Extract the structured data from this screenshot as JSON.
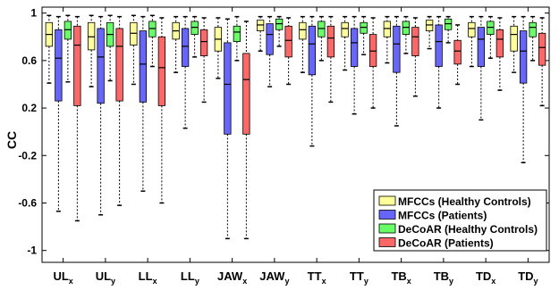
{
  "chart_data": {
    "type": "box",
    "ylabel": "CC",
    "ylim": [
      -1.1,
      1.05
    ],
    "yticks": [
      1,
      0.6,
      0.2,
      -0.2,
      -0.6,
      -1
    ],
    "ytick_labels": [
      "1",
      "0.6",
      "0.2",
      "-0.2",
      "-0.6",
      "-1"
    ],
    "categories": [
      {
        "base": "UL",
        "sub": "x"
      },
      {
        "base": "UL",
        "sub": "y"
      },
      {
        "base": "LL",
        "sub": "x"
      },
      {
        "base": "LL",
        "sub": "y"
      },
      {
        "base": "JAW",
        "sub": "x"
      },
      {
        "base": "JAW",
        "sub": "y"
      },
      {
        "base": "TT",
        "sub": "x"
      },
      {
        "base": "TT",
        "sub": "y"
      },
      {
        "base": "TB",
        "sub": "x"
      },
      {
        "base": "TB",
        "sub": "y"
      },
      {
        "base": "TD",
        "sub": "x"
      },
      {
        "base": "TD",
        "sub": "y"
      }
    ],
    "legend_position": "bottom-right",
    "series": [
      {
        "name": "MFCCs (Healthy Controls)",
        "color": "#ffff99",
        "boxes": [
          {
            "min": 0.41,
            "q1": 0.72,
            "median": 0.82,
            "q3": 0.92,
            "max": 0.98
          },
          {
            "min": 0.38,
            "q1": 0.69,
            "median": 0.8,
            "q3": 0.92,
            "max": 0.98
          },
          {
            "min": 0.4,
            "q1": 0.73,
            "median": 0.83,
            "q3": 0.92,
            "max": 0.98
          },
          {
            "min": 0.5,
            "q1": 0.78,
            "median": 0.85,
            "q3": 0.92,
            "max": 0.97
          },
          {
            "min": 0.45,
            "q1": 0.68,
            "median": 0.78,
            "q3": 0.88,
            "max": 0.96
          },
          {
            "min": 0.68,
            "q1": 0.85,
            "median": 0.9,
            "q3": 0.94,
            "max": 0.97
          },
          {
            "min": 0.5,
            "q1": 0.78,
            "median": 0.86,
            "q3": 0.92,
            "max": 0.97
          },
          {
            "min": 0.52,
            "q1": 0.8,
            "median": 0.87,
            "q3": 0.92,
            "max": 0.97
          },
          {
            "min": 0.58,
            "q1": 0.8,
            "median": 0.87,
            "q3": 0.93,
            "max": 0.97
          },
          {
            "min": 0.7,
            "q1": 0.85,
            "median": 0.9,
            "q3": 0.94,
            "max": 0.97
          },
          {
            "min": 0.55,
            "q1": 0.8,
            "median": 0.87,
            "q3": 0.92,
            "max": 0.97
          },
          {
            "min": 0.5,
            "q1": 0.68,
            "median": 0.82,
            "q3": 0.89,
            "max": 0.97
          }
        ]
      },
      {
        "name": "MFCCs (Patients)",
        "color": "#6666ff",
        "boxes": [
          {
            "min": -0.67,
            "q1": 0.26,
            "median": 0.62,
            "q3": 0.86,
            "max": 0.97
          },
          {
            "min": -0.7,
            "q1": 0.24,
            "median": 0.63,
            "q3": 0.87,
            "max": 0.97
          },
          {
            "min": -0.5,
            "q1": 0.25,
            "median": 0.57,
            "q3": 0.85,
            "max": 0.97
          },
          {
            "min": 0.03,
            "q1": 0.55,
            "median": 0.72,
            "q3": 0.87,
            "max": 0.97
          },
          {
            "min": -0.9,
            "q1": -0.02,
            "median": 0.4,
            "q3": 0.75,
            "max": 0.95
          },
          {
            "min": 0.38,
            "q1": 0.65,
            "median": 0.82,
            "q3": 0.91,
            "max": 0.97
          },
          {
            "min": -0.12,
            "q1": 0.48,
            "median": 0.74,
            "q3": 0.89,
            "max": 0.97
          },
          {
            "min": 0.15,
            "q1": 0.55,
            "median": 0.75,
            "q3": 0.87,
            "max": 0.97
          },
          {
            "min": 0.05,
            "q1": 0.5,
            "median": 0.74,
            "q3": 0.89,
            "max": 0.97
          },
          {
            "min": 0.2,
            "q1": 0.55,
            "median": 0.76,
            "q3": 0.9,
            "max": 0.97
          },
          {
            "min": 0.1,
            "q1": 0.55,
            "median": 0.78,
            "q3": 0.88,
            "max": 0.97
          },
          {
            "min": -0.26,
            "q1": 0.41,
            "median": 0.68,
            "q3": 0.85,
            "max": 0.97
          }
        ]
      },
      {
        "name": "DeCoAR (Healthy Controls)",
        "color": "#66ff66",
        "boxes": [
          {
            "min": 0.42,
            "q1": 0.78,
            "median": 0.86,
            "q3": 0.93,
            "max": 0.98
          },
          {
            "min": 0.43,
            "q1": 0.72,
            "median": 0.82,
            "q3": 0.92,
            "max": 0.98
          },
          {
            "min": 0.55,
            "q1": 0.8,
            "median": 0.87,
            "q3": 0.93,
            "max": 0.98
          },
          {
            "min": 0.63,
            "q1": 0.82,
            "median": 0.88,
            "q3": 0.93,
            "max": 0.97
          },
          {
            "min": 0.6,
            "q1": 0.76,
            "median": 0.84,
            "q3": 0.89,
            "max": 0.97
          },
          {
            "min": 0.72,
            "q1": 0.86,
            "median": 0.91,
            "q3": 0.95,
            "max": 0.97
          },
          {
            "min": 0.6,
            "q1": 0.8,
            "median": 0.87,
            "q3": 0.93,
            "max": 0.97
          },
          {
            "min": 0.65,
            "q1": 0.83,
            "median": 0.88,
            "q3": 0.92,
            "max": 0.97
          },
          {
            "min": 0.66,
            "q1": 0.82,
            "median": 0.88,
            "q3": 0.93,
            "max": 0.97
          },
          {
            "min": 0.75,
            "q1": 0.86,
            "median": 0.91,
            "q3": 0.95,
            "max": 0.97
          },
          {
            "min": 0.62,
            "q1": 0.82,
            "median": 0.88,
            "q3": 0.93,
            "max": 0.97
          },
          {
            "min": 0.6,
            "q1": 0.8,
            "median": 0.88,
            "q3": 0.92,
            "max": 0.97
          }
        ]
      },
      {
        "name": "DeCoAR (Patients)",
        "color": "#ff6666",
        "boxes": [
          {
            "min": -0.75,
            "q1": 0.22,
            "median": 0.73,
            "q3": 0.89,
            "max": 0.97
          },
          {
            "min": -0.62,
            "q1": 0.26,
            "median": 0.72,
            "q3": 0.87,
            "max": 0.97
          },
          {
            "min": -0.6,
            "q1": 0.22,
            "median": 0.54,
            "q3": 0.8,
            "max": 0.96
          },
          {
            "min": 0.25,
            "q1": 0.64,
            "median": 0.76,
            "q3": 0.86,
            "max": 0.96
          },
          {
            "min": -0.9,
            "q1": -0.02,
            "median": 0.44,
            "q3": 0.66,
            "max": 0.93
          },
          {
            "min": 0.4,
            "q1": 0.63,
            "median": 0.77,
            "q3": 0.89,
            "max": 0.96
          },
          {
            "min": 0.25,
            "q1": 0.63,
            "median": 0.79,
            "q3": 0.89,
            "max": 0.97
          },
          {
            "min": 0.2,
            "q1": 0.55,
            "median": 0.68,
            "q3": 0.82,
            "max": 0.96
          },
          {
            "min": 0.3,
            "q1": 0.64,
            "median": 0.8,
            "q3": 0.88,
            "max": 0.96
          },
          {
            "min": 0.4,
            "q1": 0.57,
            "median": 0.68,
            "q3": 0.77,
            "max": 0.9
          },
          {
            "min": 0.35,
            "q1": 0.63,
            "median": 0.78,
            "q3": 0.86,
            "max": 0.96
          },
          {
            "min": 0.22,
            "q1": 0.56,
            "median": 0.71,
            "q3": 0.83,
            "max": 0.96
          }
        ]
      }
    ]
  }
}
